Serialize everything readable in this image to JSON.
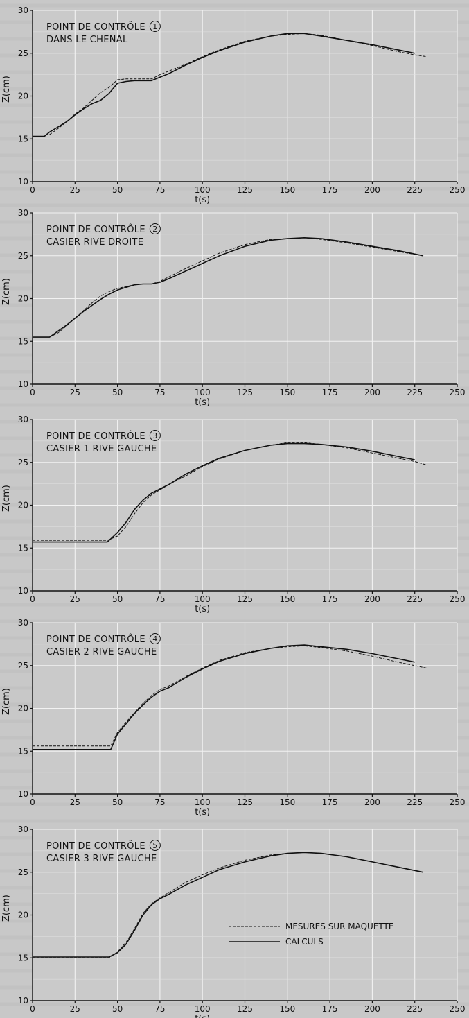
{
  "legend": {
    "measured": "MESURES SUR MAQUETTE",
    "computed": "CALCULS"
  },
  "chart_data": [
    {
      "type": "line",
      "title_line1": "POINT DE CONTRÔLE",
      "marker": "1",
      "title_line2": "DANS LE CHENAL",
      "xlabel": "t(s)",
      "ylabel": "Z(cm)",
      "xlim": [
        0,
        250
      ],
      "ylim": [
        10,
        30
      ],
      "xticks": [
        "0",
        "25",
        "50",
        "75",
        "100",
        "125",
        "150",
        "175",
        "200",
        "225",
        "250"
      ],
      "yticks": [
        "10",
        "15",
        "20",
        "25",
        "30"
      ],
      "grid": true,
      "series": [
        {
          "name": "CALCULS",
          "style": "solid",
          "x": [
            0,
            7,
            10,
            15,
            20,
            25,
            30,
            35,
            40,
            45,
            50,
            55,
            60,
            65,
            70,
            75,
            80,
            90,
            100,
            110,
            125,
            140,
            150,
            160,
            170,
            185,
            200,
            215,
            225
          ],
          "y": [
            15.3,
            15.3,
            15.8,
            16.4,
            17.0,
            17.8,
            18.5,
            19.1,
            19.5,
            20.3,
            21.5,
            21.7,
            21.8,
            21.8,
            21.8,
            22.2,
            22.6,
            23.6,
            24.5,
            25.3,
            26.3,
            27.0,
            27.3,
            27.3,
            27.0,
            26.5,
            26.0,
            25.4,
            25.0
          ]
        },
        {
          "name": "MESURES SUR MAQUETTE",
          "style": "dashed",
          "x": [
            10,
            15,
            20,
            25,
            30,
            35,
            40,
            45,
            50,
            55,
            60,
            65,
            70,
            75,
            80,
            90,
            100,
            110,
            125,
            140,
            150,
            160,
            170,
            185,
            200,
            215,
            225,
            232
          ],
          "y": [
            15.5,
            16.2,
            17.0,
            17.9,
            18.6,
            19.5,
            20.4,
            21.0,
            21.9,
            22.0,
            22.0,
            22.0,
            22.0,
            22.5,
            22.9,
            23.7,
            24.6,
            25.4,
            26.4,
            27.0,
            27.2,
            27.3,
            27.1,
            26.5,
            25.9,
            25.2,
            24.8,
            24.6
          ]
        }
      ]
    },
    {
      "type": "line",
      "title_line1": "POINT DE CONTRÔLE",
      "marker": "2",
      "title_line2": "CASIER RIVE DROITE",
      "xlabel": "t(s)",
      "ylabel": "Z(cm)",
      "xlim": [
        0,
        250
      ],
      "ylim": [
        10,
        30
      ],
      "xticks": [
        "0",
        "25",
        "50",
        "75",
        "100",
        "125",
        "150",
        "175",
        "200",
        "225",
        "250"
      ],
      "yticks": [
        "10",
        "15",
        "20",
        "25",
        "30"
      ],
      "grid": true,
      "series": [
        {
          "name": "CALCULS",
          "style": "solid",
          "x": [
            0,
            10,
            15,
            20,
            25,
            30,
            35,
            40,
            45,
            50,
            55,
            60,
            65,
            70,
            75,
            80,
            90,
            100,
            110,
            125,
            140,
            150,
            160,
            170,
            185,
            200,
            215,
            230
          ],
          "y": [
            15.5,
            15.5,
            16.2,
            16.9,
            17.7,
            18.5,
            19.2,
            19.9,
            20.5,
            21.0,
            21.3,
            21.6,
            21.7,
            21.7,
            21.9,
            22.3,
            23.2,
            24.1,
            25.0,
            26.1,
            26.8,
            27.0,
            27.1,
            27.0,
            26.6,
            26.1,
            25.6,
            25.0
          ]
        },
        {
          "name": "MESURES SUR MAQUETTE",
          "style": "dashed",
          "x": [
            10,
            15,
            20,
            25,
            30,
            35,
            40,
            45,
            50,
            55,
            60,
            65,
            70,
            75,
            80,
            90,
            100,
            110,
            125,
            140,
            150,
            160,
            170,
            185,
            200,
            215,
            230
          ],
          "y": [
            15.5,
            16.0,
            16.8,
            17.7,
            18.6,
            19.5,
            20.3,
            20.8,
            21.2,
            21.4,
            21.6,
            21.7,
            21.7,
            22.0,
            22.5,
            23.5,
            24.4,
            25.3,
            26.3,
            26.9,
            27.0,
            27.1,
            26.9,
            26.5,
            26.0,
            25.5,
            25.0
          ]
        }
      ]
    },
    {
      "type": "line",
      "title_line1": "POINT DE CONTRÔLE",
      "marker": "3",
      "title_line2": "CASIER 1 RIVE GAUCHE",
      "xlabel": "t(s)",
      "ylabel": "Z(cm)",
      "xlim": [
        0,
        250
      ],
      "ylim": [
        10,
        30
      ],
      "xticks": [
        "0",
        "25",
        "50",
        "75",
        "100",
        "125",
        "150",
        "175",
        "200",
        "225",
        "250"
      ],
      "yticks": [
        "10",
        "15",
        "20",
        "25",
        "30"
      ],
      "grid": true,
      "series": [
        {
          "name": "CALCULS",
          "style": "solid",
          "x": [
            0,
            44,
            50,
            55,
            60,
            65,
            70,
            75,
            80,
            90,
            100,
            110,
            125,
            140,
            150,
            160,
            170,
            185,
            200,
            215,
            225
          ],
          "y": [
            15.7,
            15.7,
            16.8,
            18.0,
            19.5,
            20.6,
            21.4,
            21.9,
            22.4,
            23.6,
            24.6,
            25.5,
            26.4,
            27.0,
            27.2,
            27.2,
            27.1,
            26.8,
            26.3,
            25.7,
            25.3
          ]
        },
        {
          "name": "MESURES SUR MAQUETTE",
          "style": "dashed",
          "x": [
            0,
            44,
            50,
            55,
            60,
            65,
            70,
            75,
            80,
            90,
            100,
            110,
            125,
            140,
            150,
            160,
            170,
            185,
            200,
            215,
            225,
            232
          ],
          "y": [
            15.9,
            15.9,
            16.4,
            17.5,
            19.0,
            20.3,
            21.2,
            21.8,
            22.4,
            23.4,
            24.5,
            25.4,
            26.4,
            27.0,
            27.3,
            27.3,
            27.1,
            26.7,
            26.1,
            25.5,
            25.1,
            24.7
          ]
        }
      ]
    },
    {
      "type": "line",
      "title_line1": "POINT DE CONTRÔLE",
      "marker": "4",
      "title_line2": "CASIER 2 RIVE GAUCHE",
      "xlabel": "t(s)",
      "ylabel": "Z(cm)",
      "xlim": [
        0,
        250
      ],
      "ylim": [
        10,
        30
      ],
      "xticks": [
        "0",
        "25",
        "50",
        "75",
        "100",
        "125",
        "150",
        "175",
        "200",
        "225",
        "250"
      ],
      "yticks": [
        "10",
        "15",
        "20",
        "25",
        "30"
      ],
      "grid": true,
      "series": [
        {
          "name": "CALCULS",
          "style": "solid",
          "x": [
            0,
            46,
            50,
            55,
            60,
            65,
            70,
            75,
            80,
            90,
            100,
            110,
            125,
            140,
            150,
            160,
            170,
            185,
            200,
            215,
            225
          ],
          "y": [
            15.2,
            15.2,
            17.0,
            18.2,
            19.4,
            20.4,
            21.3,
            22.0,
            22.4,
            23.6,
            24.6,
            25.5,
            26.4,
            27.0,
            27.3,
            27.4,
            27.2,
            26.9,
            26.4,
            25.8,
            25.4
          ]
        },
        {
          "name": "MESURES SUR MAQUETTE",
          "style": "dashed",
          "x": [
            0,
            46,
            50,
            55,
            60,
            65,
            70,
            75,
            80,
            90,
            100,
            110,
            125,
            140,
            150,
            160,
            170,
            185,
            200,
            215,
            225,
            232
          ],
          "y": [
            15.6,
            15.6,
            17.2,
            18.4,
            19.5,
            20.6,
            21.5,
            22.2,
            22.6,
            23.7,
            24.7,
            25.6,
            26.5,
            27.0,
            27.2,
            27.3,
            27.1,
            26.7,
            26.1,
            25.4,
            25.0,
            24.7
          ]
        }
      ]
    },
    {
      "type": "line",
      "title_line1": "POINT DE CONTRÔLE",
      "marker": "5",
      "title_line2": "CASIER 3 RIVE GAUCHE",
      "xlabel": "t(s)",
      "ylabel": "Z(cm)",
      "xlim": [
        0,
        250
      ],
      "ylim": [
        10,
        30
      ],
      "xticks": [
        "0",
        "25",
        "50",
        "75",
        "100",
        "125",
        "150",
        "175",
        "200",
        "225",
        "250"
      ],
      "yticks": [
        "10",
        "15",
        "20",
        "25",
        "30"
      ],
      "grid": true,
      "legend_location": "lower-right",
      "series": [
        {
          "name": "CALCULS",
          "style": "solid",
          "x": [
            0,
            45,
            50,
            55,
            60,
            65,
            70,
            75,
            80,
            90,
            100,
            110,
            125,
            140,
            150,
            160,
            170,
            185,
            200,
            215,
            230
          ],
          "y": [
            15.1,
            15.1,
            15.6,
            16.6,
            18.2,
            20.0,
            21.2,
            21.9,
            22.4,
            23.5,
            24.4,
            25.3,
            26.2,
            26.9,
            27.2,
            27.3,
            27.2,
            26.8,
            26.2,
            25.6,
            25.0
          ]
        },
        {
          "name": "MESURES SUR MAQUETTE",
          "style": "dashed",
          "x": [
            0,
            45,
            50,
            55,
            60,
            65,
            70,
            75,
            80,
            90,
            100,
            110,
            125,
            140,
            150,
            160,
            170,
            185,
            200,
            215,
            230
          ],
          "y": [
            15.0,
            15.0,
            15.7,
            16.8,
            18.4,
            20.2,
            21.3,
            22.0,
            22.6,
            23.8,
            24.7,
            25.5,
            26.4,
            27.0,
            27.2,
            27.3,
            27.2,
            26.8,
            26.2,
            25.6,
            25.0
          ]
        }
      ]
    }
  ]
}
